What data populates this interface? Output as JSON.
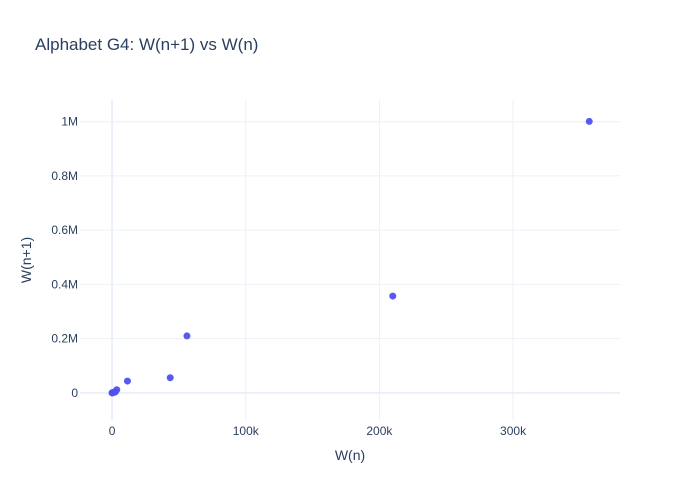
{
  "chart_data": {
    "type": "scatter",
    "title": "Alphabet G4: W(n+1) vs W(n)",
    "xlabel": "W(n)",
    "ylabel": "W(n+1)",
    "xlim": [
      -24000,
      380000
    ],
    "ylim": [
      -100000,
      1080000
    ],
    "xticks": [
      0,
      100000,
      200000,
      300000
    ],
    "xtick_labels": [
      "0",
      "100k",
      "200k",
      "300k"
    ],
    "yticks": [
      0,
      200000,
      400000,
      600000,
      800000,
      1000000
    ],
    "ytick_labels": [
      "0",
      "0.2M",
      "0.4M",
      "0.6M",
      "0.8M",
      "1M"
    ],
    "grid": true,
    "legend": "none",
    "marker_color": "#5050f0",
    "x": [
      0,
      200,
      500,
      1000,
      1500,
      2500,
      3500,
      11500,
      43500,
      56000,
      210000,
      357000
    ],
    "y": [
      0,
      500,
      1000,
      1500,
      2500,
      3500,
      11500,
      43500,
      56000,
      210000,
      357000,
      1001000
    ]
  }
}
